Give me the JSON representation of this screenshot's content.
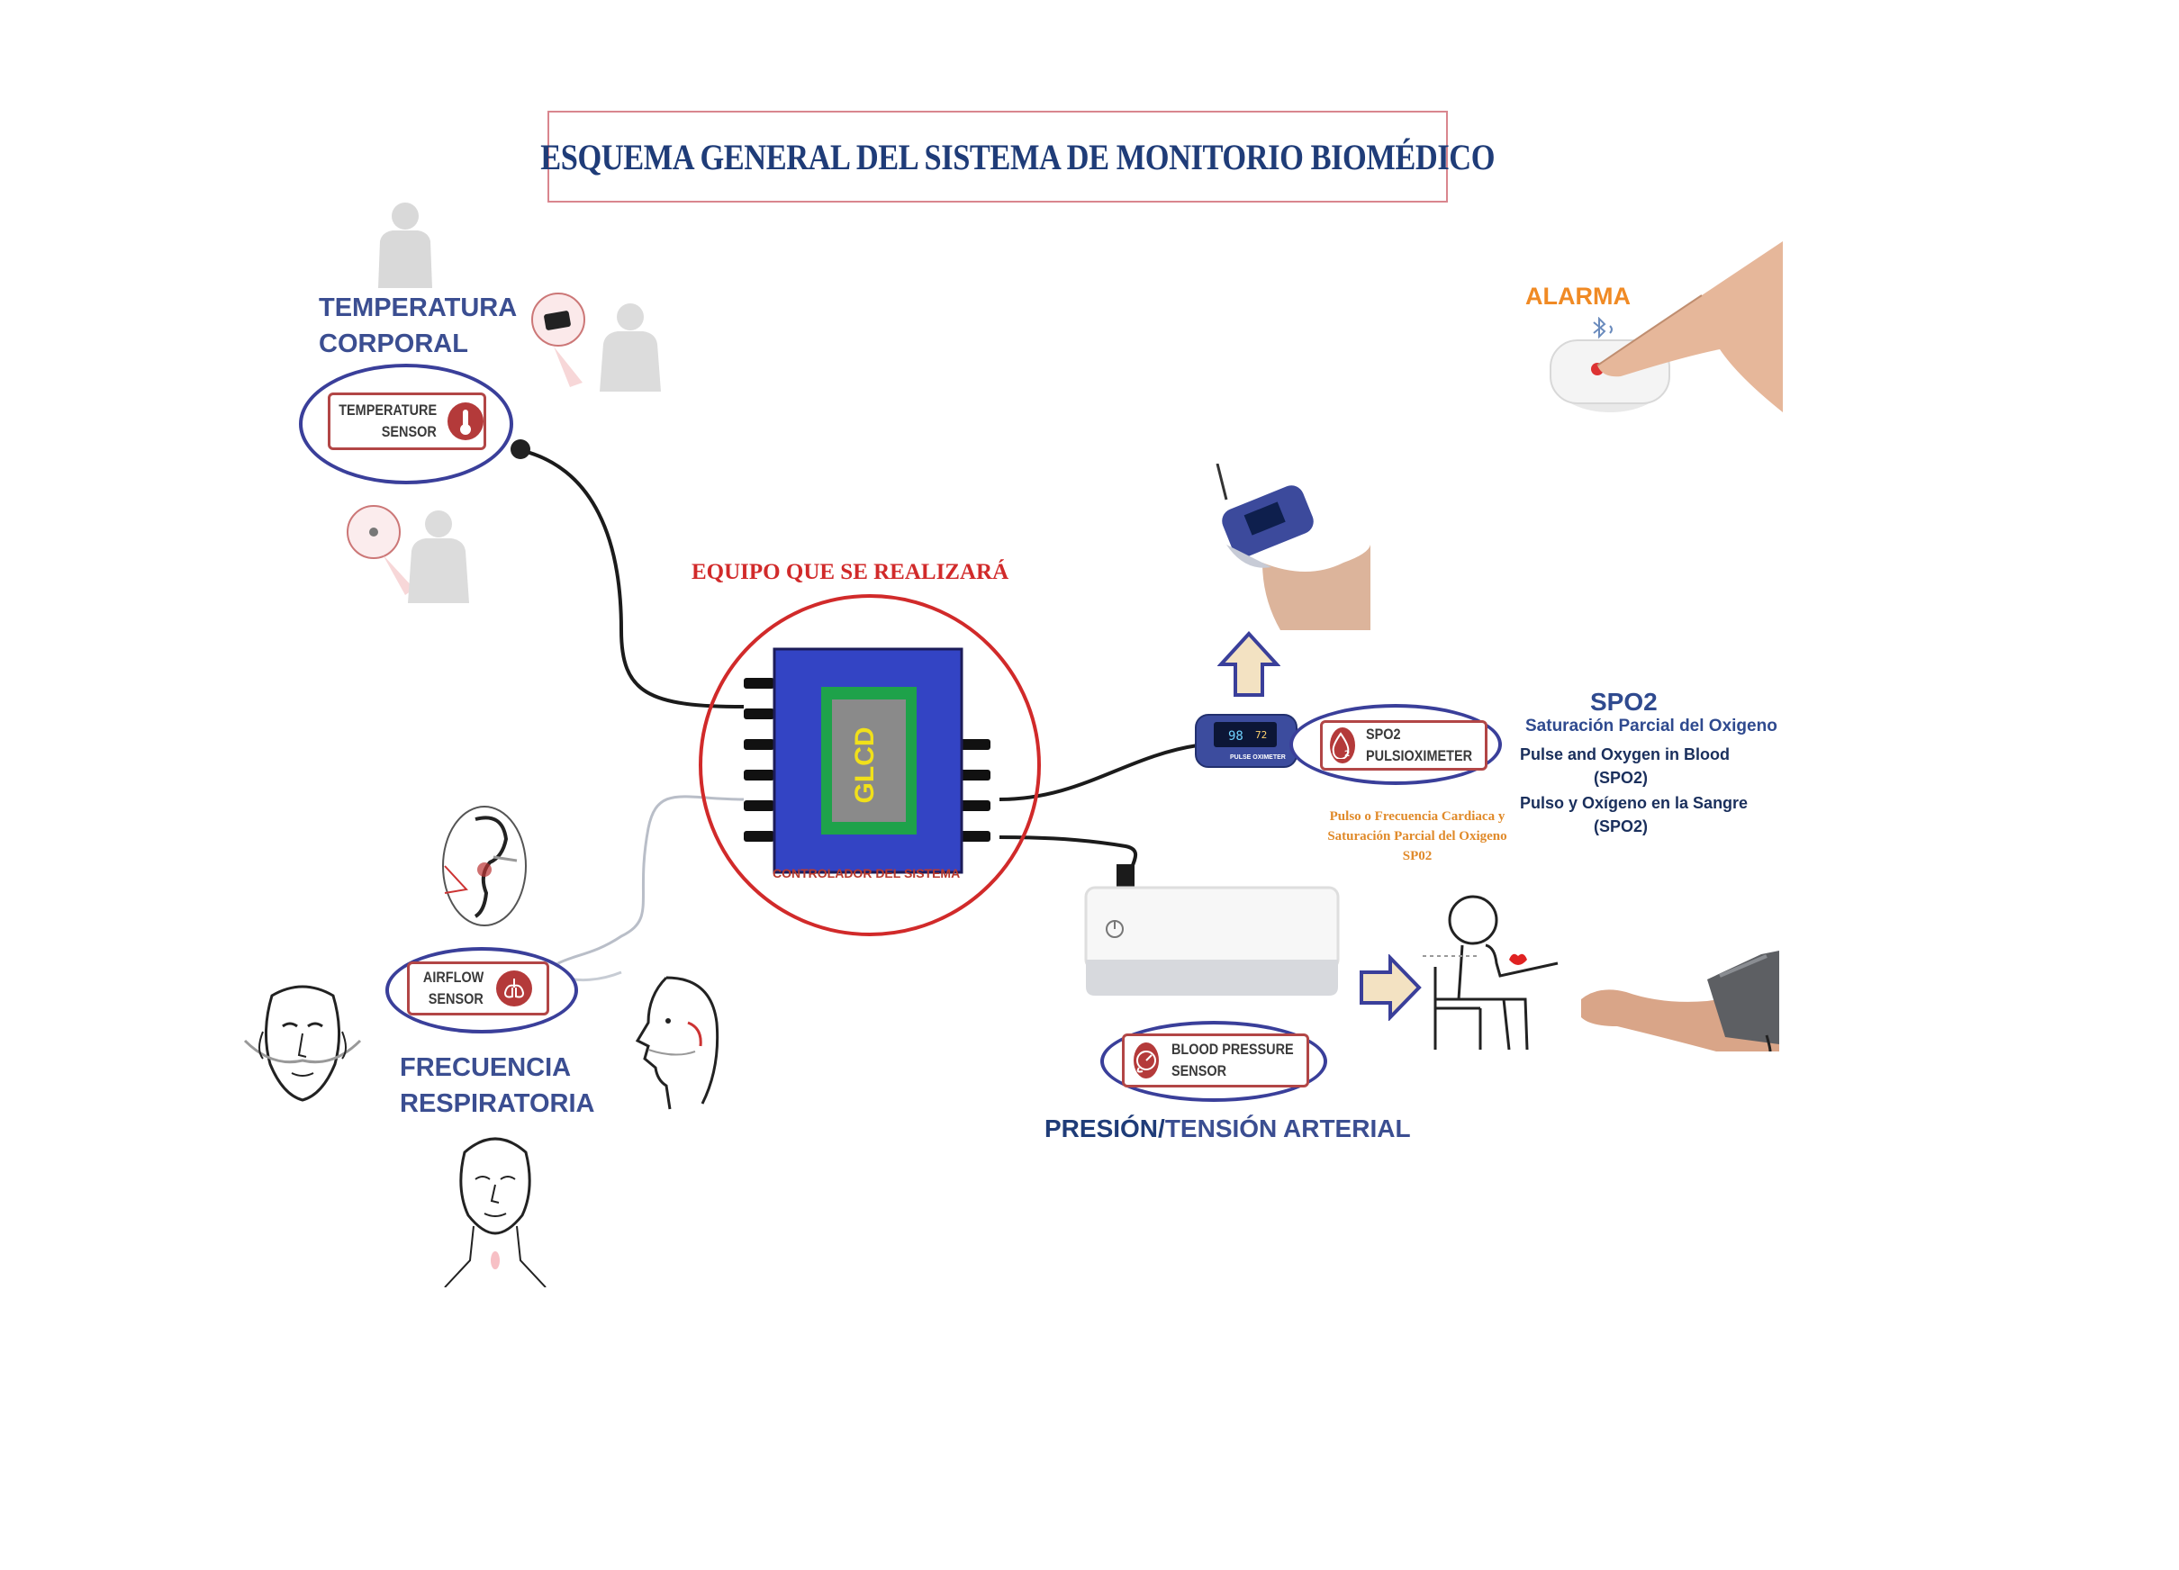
{
  "title": "ESQUEMA GENERAL DEL SISTEMA DE MONITORIO BIOMÉDICO",
  "colors": {
    "title": "#1f3c78",
    "label_blue": "#3b4e91",
    "ellipse_border": "#3a3f9a",
    "sensor_border": "#b24646",
    "equipo_red": "#d12a2a",
    "alarm_orange": "#f08a24",
    "glcd_blue": "#3344c4",
    "glcd_green": "#1ea24a",
    "glcd_text": "#f1e01a",
    "controller_text": "#b83a2e"
  },
  "temperature": {
    "heading_line1": "TEMPERATURA",
    "heading_line2": "CORPORAL",
    "sensor_line1": "TEMPERATURE",
    "sensor_line2": "SENSOR",
    "icon": "thermometer-icon"
  },
  "controller": {
    "heading": "EQUIPO QUE SE REALIZARÁ",
    "display": "GLCD",
    "caption": "CONTROLADOR DEL SISTEMA"
  },
  "alarm": {
    "heading": "ALARMA",
    "icon": "bluetooth-icon"
  },
  "spo2": {
    "sensor_line1": "SPO2",
    "sensor_line2": "PULSIOXIMETER",
    "icon": "oxygen-drop-icon",
    "heading": "SPO2",
    "desc1": "Saturación Parcial del Oxigeno",
    "desc2_line1": "Pulse and Oxygen in Blood",
    "desc2_line2": "(SPO2)",
    "desc3_line1": "Pulso y Oxígeno en la Sangre",
    "desc3_line2": "(SPO2)",
    "note_line1": "Pulso o Frecuencia Cardiaca y",
    "note_line2": "Saturación Parcial del Oxigeno",
    "note_line3": "SP02",
    "oximeter_label": "PULSE OXIMETER"
  },
  "airflow": {
    "sensor_line1": "AIRFLOW",
    "sensor_line2": "SENSOR",
    "icon": "lungs-icon",
    "heading_line1": "FRECUENCIA",
    "heading_line2": "RESPIRATORIA"
  },
  "blood_pressure": {
    "sensor_line1": "BLOOD PRESSURE",
    "sensor_line2": "SENSOR",
    "icon": "gauge-icon",
    "heading_part1": "PRESIÓN/",
    "heading_part2": "TENSIÓN ARTERIAL"
  }
}
